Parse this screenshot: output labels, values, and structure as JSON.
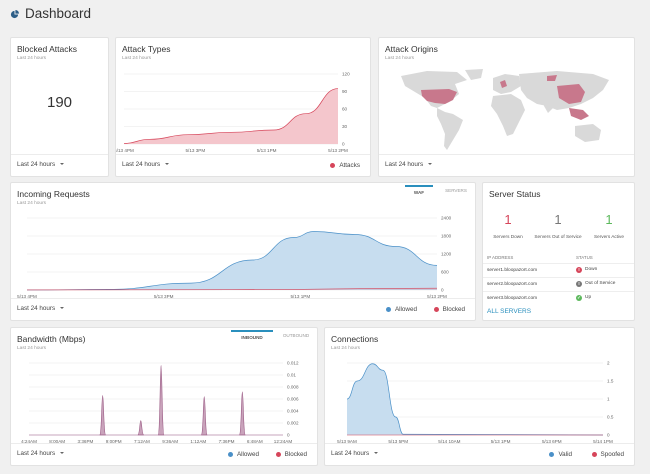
{
  "header": {
    "title": "Dashboard",
    "icon": "pie-chart-icon"
  },
  "colors": {
    "accent": "#2a8fbd",
    "attack": "#d6455a",
    "attack_fill": "#f4c6cc",
    "allowed": "#4a90c8",
    "allowed_fill": "#c7ddef",
    "green": "#5cb85c",
    "bandwidth_fill": "#c9a3bb",
    "bandwidth_line": "#9b5b85"
  },
  "blocked": {
    "title": "Blocked Attacks",
    "subtitle": "Last 24 hours",
    "value": "190",
    "period": "Last 24 hours"
  },
  "attack_types": {
    "title": "Attack Types",
    "subtitle": "Last 24 hours",
    "period": "Last 24 hours",
    "legend": "Attacks",
    "chart_data": {
      "type": "area",
      "x": [
        "5/13 4PM",
        "5/13 3PM",
        "5/13 1PM",
        "5/13 2PM"
      ],
      "y_ticks": [
        "120",
        "90",
        "60",
        "30",
        "0"
      ],
      "ylim": [
        0,
        120
      ],
      "series": [
        {
          "name": "Attacks",
          "points": [
            [
              0,
              1
            ],
            [
              0.12,
              8
            ],
            [
              0.3,
              16
            ],
            [
              0.5,
              20
            ],
            [
              0.7,
              24
            ],
            [
              0.85,
              52
            ],
            [
              1.0,
              95
            ]
          ]
        }
      ]
    }
  },
  "attack_origins": {
    "title": "Attack Origins",
    "subtitle": "Last 24 hours",
    "period": "Last 24 hours"
  },
  "incoming": {
    "title": "Incoming Requests",
    "subtitle": "Last 24 hours",
    "period": "Last 24 hours",
    "tabs": [
      "WAF",
      "SERVERS"
    ],
    "legend": [
      "Allowed",
      "Blocked"
    ],
    "chart_data": {
      "type": "area",
      "x": [
        "5/13 4PM",
        "5/13 3PM",
        "5/13 1PM",
        "5/13 2PM"
      ],
      "y_ticks": [
        "2400",
        "1800",
        "1200",
        "600",
        "0"
      ],
      "ylim": [
        0,
        2400
      ],
      "series": [
        {
          "name": "Allowed",
          "points": [
            [
              0,
              2
            ],
            [
              0.2,
              20
            ],
            [
              0.4,
              230
            ],
            [
              0.55,
              1000
            ],
            [
              0.65,
              1750
            ],
            [
              0.7,
              1950
            ],
            [
              0.8,
              1850
            ],
            [
              0.9,
              1450
            ],
            [
              1.0,
              820
            ]
          ]
        },
        {
          "name": "Blocked",
          "points": [
            [
              0,
              2
            ],
            [
              0.5,
              10
            ],
            [
              1.0,
              60
            ]
          ]
        }
      ]
    }
  },
  "server_status": {
    "title": "Server Status",
    "stats": [
      {
        "value": "1",
        "label": "Servers Down",
        "color": "#d6455a"
      },
      {
        "value": "1",
        "label": "Servers Out of Service",
        "color": "#777777"
      },
      {
        "value": "1",
        "label": "Servers Active",
        "color": "#5cb85c"
      }
    ],
    "col_ip": "IP ADDRESS",
    "col_status": "STATUS",
    "rows": [
      {
        "name": "server1.bloopazort.com",
        "status": "Down",
        "icon": "!",
        "color": "#d6455a"
      },
      {
        "name": "server2.bloopazort.com",
        "status": "Out of Service",
        "icon": "!",
        "color": "#777777"
      },
      {
        "name": "server3.bloopazort.com",
        "status": "Up",
        "icon": "✓",
        "color": "#5cb85c"
      }
    ],
    "all_link": "ALL SERVERS"
  },
  "bandwidth": {
    "title": "Bandwidth (Mbps)",
    "subtitle": "Last 24 hours",
    "period": "Last 24 hours",
    "tabs": [
      "INBOUND",
      "OUTBOUND"
    ],
    "legend": [
      "Allowed",
      "Blocked"
    ],
    "chart_data": {
      "type": "area",
      "x": [
        "4:24AM",
        "8:00AM",
        "3:36PM",
        "9:00PM",
        "7:12AM",
        "9:36AM",
        "1:12AM",
        "7:36PM",
        "6:48AM",
        "12:24AM"
      ],
      "y_ticks": [
        "0.012",
        "0.01",
        "0.008",
        "0.006",
        "0.004",
        "0.002",
        "0"
      ],
      "ylim": [
        0,
        0.012
      ],
      "series": [
        {
          "name": "Allowed",
          "peaks": [
            [
              0.29,
              0.0066
            ],
            [
              0.44,
              0.0024
            ],
            [
              0.52,
              0.0116
            ],
            [
              0.69,
              0.0064
            ],
            [
              0.84,
              0.0072
            ]
          ]
        }
      ]
    }
  },
  "connections": {
    "title": "Connections",
    "subtitle": "Last 24 hours",
    "period": "Last 24 hours",
    "legend": [
      "Valid",
      "Spoofed"
    ],
    "chart_data": {
      "type": "area",
      "x": [
        "5/13 9AM",
        "5/13 5PM",
        "5/14 10AM",
        "5/13 1PM",
        "5/13 6PM",
        "5/14 1PM"
      ],
      "y_ticks": [
        "2",
        "1.5",
        "1",
        "0.5",
        "0"
      ],
      "ylim": [
        0,
        2
      ],
      "series": [
        {
          "name": "Valid",
          "points": [
            [
              0,
              1.0
            ],
            [
              0.04,
              1.5
            ],
            [
              0.1,
              1.98
            ],
            [
              0.14,
              1.8
            ],
            [
              0.19,
              0.5
            ],
            [
              0.22,
              0.02
            ],
            [
              1.0,
              0.0
            ]
          ]
        }
      ]
    }
  }
}
